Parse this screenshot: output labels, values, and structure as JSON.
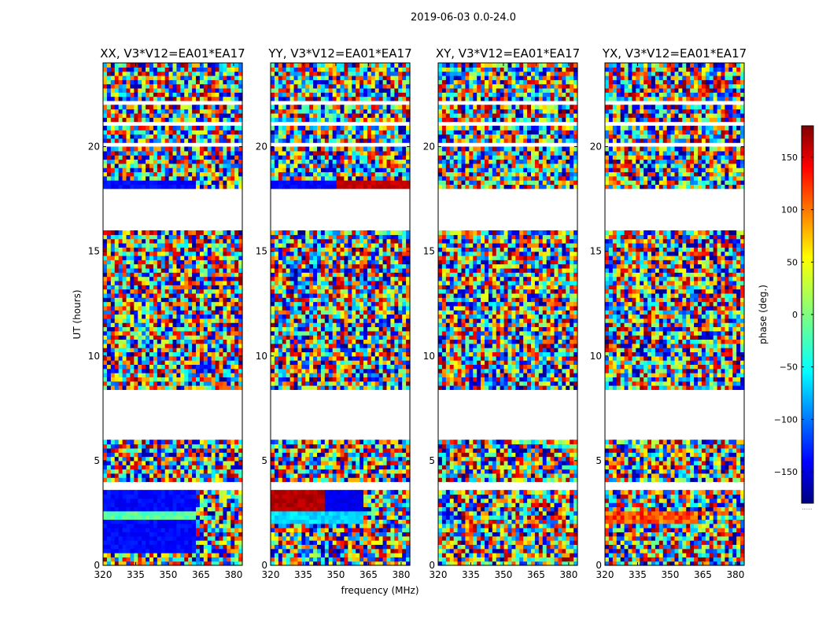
{
  "figure": {
    "suptitle": "2019-06-03 0.0-24.0",
    "xlabel": "frequency (MHz)",
    "ylabel": "UT (hours)",
    "colorbar_label": "phase (deg.)",
    "colorbar_footnote": "......"
  },
  "colors": {
    "background": "#ffffff",
    "axes": "#000000"
  },
  "chart_data": [
    {
      "type": "heatmap",
      "title": "XX, V3*V12=EA01*EA17",
      "x": {
        "label": "frequency (MHz)",
        "range": [
          320,
          384
        ],
        "ticks": [
          320,
          335,
          350,
          365,
          380
        ]
      },
      "y": {
        "label": "UT (hours)",
        "range": [
          0,
          24
        ],
        "ticks": [
          0,
          5,
          10,
          15,
          20
        ]
      },
      "value_range": [
        -180,
        180
      ],
      "colormap": "jet",
      "structure": "mostly random phase noise; coherent blue phases (~-150 deg) in 0.4-4 h at 320-360 MHz and near 18.1-18.4 h, green (~-20 deg) band at 2.3-2.7 h; gaps at 6-8.5 h and 16-18 h"
    },
    {
      "type": "heatmap",
      "title": "YY, V3*V12=EA01*EA17",
      "x": {
        "label": "frequency (MHz)",
        "range": [
          320,
          384
        ],
        "ticks": [
          320,
          335,
          350,
          365,
          380
        ]
      },
      "y": {
        "label": "UT (hours)",
        "range": [
          0,
          24
        ],
        "ticks": [
          0,
          5,
          10,
          15,
          20
        ]
      },
      "value_range": [
        -180,
        180
      ],
      "colormap": "jet",
      "structure": "random phase noise with coherent red/blue wrapping phases (~+150/-150 deg) at 2-3.7 h and 18.1-18.4 h; cyan band at 2-2.7 h; gaps at 6-8.5 h and 16-18 h"
    },
    {
      "type": "heatmap",
      "title": "XY, V3*V12=EA01*EA17",
      "x": {
        "label": "frequency (MHz)",
        "range": [
          320,
          384
        ],
        "ticks": [
          320,
          335,
          350,
          365,
          380
        ]
      },
      "y": {
        "label": "UT (hours)",
        "range": [
          0,
          24
        ],
        "ticks": [
          0,
          5,
          10,
          15,
          20
        ]
      },
      "value_range": [
        -180,
        180
      ],
      "colormap": "jet",
      "structure": "random phase noise throughout; gaps at 6-8.5 h and 16-18 h"
    },
    {
      "type": "heatmap",
      "title": "YX, V3*V12=EA01*EA17",
      "x": {
        "label": "frequency (MHz)",
        "range": [
          320,
          384
        ],
        "ticks": [
          320,
          335,
          350,
          365,
          380
        ]
      },
      "y": {
        "label": "UT (hours)",
        "range": [
          0,
          24
        ],
        "ticks": [
          0,
          5,
          10,
          15,
          20
        ]
      },
      "value_range": [
        -180,
        180
      ],
      "colormap": "jet",
      "structure": "random phase noise; slightly coherent orange/red (~+100 deg) band at 2-2.7 h; gaps at 6-8.5 h and 16-18 h"
    }
  ],
  "colorbar": {
    "range": [
      -180,
      180
    ],
    "ticks": [
      -150,
      -100,
      -50,
      0,
      50,
      100,
      150
    ],
    "tick_labels": [
      "−150",
      "−100",
      "−50",
      "0",
      "50",
      "100",
      "150"
    ]
  },
  "flagged_gaps_hours": [
    [
      0.42,
      0.5
    ],
    [
      1.55,
      1.65
    ],
    [
      3.7,
      4.1
    ],
    [
      4.92,
      5.0
    ],
    [
      6.0,
      8.45
    ],
    [
      14.95,
      15.05
    ],
    [
      16.0,
      18.0
    ],
    [
      20.0,
      20.25
    ],
    [
      21.1,
      21.25
    ],
    [
      22.0,
      22.1
    ],
    [
      22.75,
      22.85
    ],
    [
      23.15,
      23.25
    ]
  ]
}
